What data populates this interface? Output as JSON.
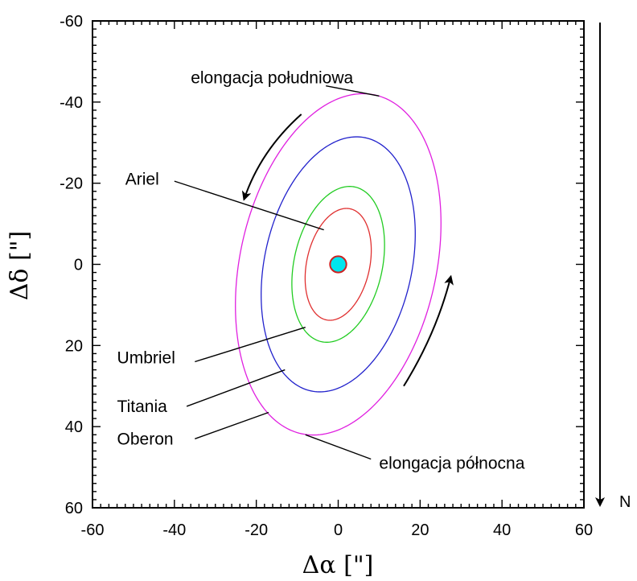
{
  "chart_data": {
    "type": "line",
    "xlabel": "Δα [\"]",
    "ylabel": "Δδ [\"]",
    "xlim": [
      -60,
      60
    ],
    "ylim": [
      -60,
      60
    ],
    "y_inverted": true,
    "x_ticks": [
      "-60",
      "-40",
      "-20",
      "0",
      "20",
      "40",
      "60"
    ],
    "y_ticks": [
      "-60",
      "-40",
      "-20",
      "0",
      "20",
      "40",
      "60"
    ],
    "grid": false,
    "planet": {
      "x": 0,
      "y": 0,
      "radius": 2,
      "fill": "#00e5ee",
      "stroke": "#cc2222"
    },
    "series": [
      {
        "name": "Ariel",
        "color": "#e03030",
        "center": [
          0,
          0
        ],
        "semi_major": 14.0,
        "semi_minor": 7.7,
        "tilt_deg": 78
      },
      {
        "name": "Umbriel",
        "color": "#22cc22",
        "center": [
          0,
          0
        ],
        "semi_major": 19.5,
        "semi_minor": 10.8,
        "tilt_deg": 78
      },
      {
        "name": "Titania",
        "color": "#2222cc",
        "center": [
          0,
          0
        ],
        "semi_major": 31.9,
        "semi_minor": 18.0,
        "tilt_deg": 78
      },
      {
        "name": "Oberon",
        "color": "#e020e0",
        "center": [
          0,
          0
        ],
        "semi_major": 42.7,
        "semi_minor": 24.0,
        "tilt_deg": 78
      }
    ],
    "annotations": [
      {
        "text": "elongacja południowa",
        "x": -36,
        "y": -46,
        "line_from": [
          -3,
          -44
        ],
        "line_to": [
          10,
          -41.5
        ]
      },
      {
        "text": "Ariel",
        "x": -52,
        "y": -21,
        "line_from": [
          -40,
          -20.5
        ],
        "line_to": [
          -3.5,
          -8.5
        ]
      },
      {
        "text": "Umbriel",
        "x": -54,
        "y": 23,
        "line_from": [
          -35,
          24
        ],
        "line_to": [
          -8,
          15.5
        ]
      },
      {
        "text": "Titania",
        "x": -54,
        "y": 35,
        "line_from": [
          -37,
          35
        ],
        "line_to": [
          -13,
          26
        ]
      },
      {
        "text": "Oberon",
        "x": -54,
        "y": 43,
        "line_from": [
          -35,
          43
        ],
        "line_to": [
          -17,
          36.5
        ]
      },
      {
        "text": "elongacja północna",
        "x": 10,
        "y": 49,
        "line_from": [
          8,
          48
        ],
        "line_to": [
          -8,
          42
        ]
      }
    ],
    "motion_arrows": [
      {
        "path": [
          [
            -9,
            -37
          ],
          [
            -19,
            -28
          ],
          [
            -23,
            -16
          ]
        ]
      },
      {
        "path": [
          [
            16,
            30
          ],
          [
            24,
            17
          ],
          [
            27.5,
            3
          ]
        ]
      }
    ],
    "north_label": "N"
  }
}
